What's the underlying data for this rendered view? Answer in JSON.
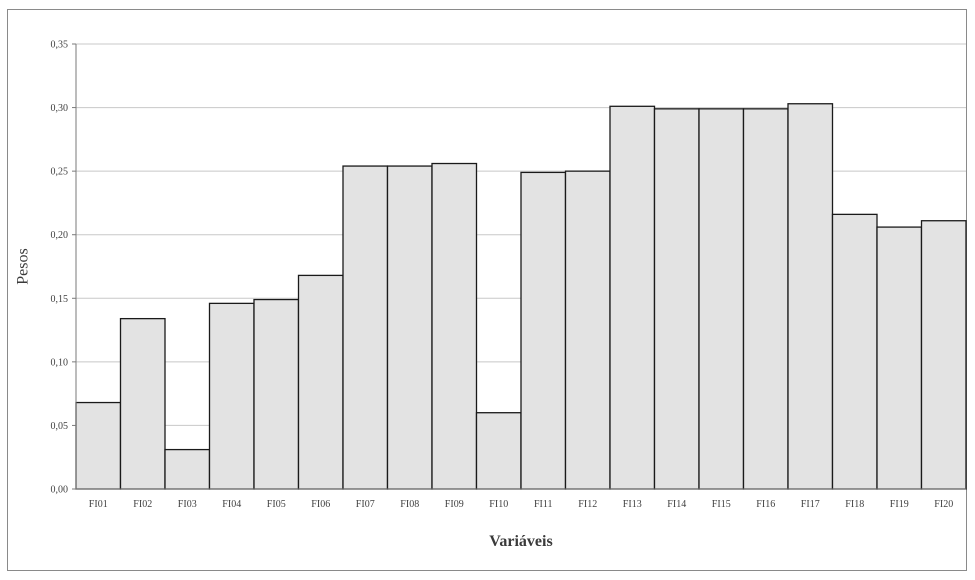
{
  "chart_data": {
    "type": "bar",
    "title": "",
    "xlabel": "Variáveis",
    "ylabel": "Pesos",
    "ylim": [
      0,
      0.35
    ],
    "yticks": [
      "0,00",
      "0,05",
      "0,10",
      "0,15",
      "0,20",
      "0,25",
      "0,30",
      "0,35"
    ],
    "grid": true,
    "legend": "none",
    "categories": [
      "FI01",
      "FI02",
      "FI03",
      "FI04",
      "FI05",
      "FI06",
      "FI07",
      "FI08",
      "FI09",
      "FI10",
      "FI11",
      "FI12",
      "FI13",
      "FI14",
      "FI15",
      "FI16",
      "FI17",
      "FI18",
      "FI19",
      "FI20"
    ],
    "values": [
      0.068,
      0.134,
      0.031,
      0.146,
      0.149,
      0.168,
      0.254,
      0.254,
      0.256,
      0.06,
      0.249,
      0.25,
      0.301,
      0.299,
      0.299,
      0.299,
      0.303,
      0.216,
      0.206,
      0.211
    ],
    "colors": {
      "bar_fill": "#e3e3e3",
      "bar_stroke": "#1a1a1a",
      "grid": "#c8c8c8",
      "axis": "#7a7a7a",
      "frame": "#8a8a8a"
    }
  }
}
